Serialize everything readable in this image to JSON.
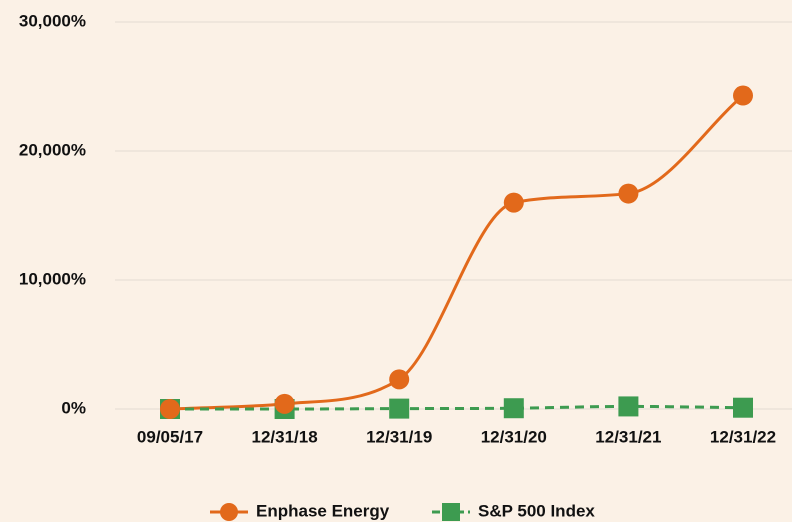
{
  "chart_data": {
    "type": "line",
    "categories": [
      "09/05/17",
      "12/31/18",
      "12/31/19",
      "12/31/20",
      "12/31/21",
      "12/31/22"
    ],
    "series": [
      {
        "name": "Enphase Energy",
        "color": "#e2691b",
        "marker": "circle",
        "dashed": false,
        "values": [
          0,
          400,
          2300,
          16000,
          16700,
          24300
        ]
      },
      {
        "name": "S&P 500 Index",
        "color": "#3d9b50",
        "marker": "square",
        "dashed": true,
        "values": [
          0,
          0,
          30,
          60,
          200,
          100
        ]
      }
    ],
    "ylim": [
      0,
      30000
    ],
    "yticks": [
      {
        "value": 0,
        "label": "0%"
      },
      {
        "value": 10000,
        "label": "10,000%"
      },
      {
        "value": 20000,
        "label": "20,000%"
      },
      {
        "value": 30000,
        "label": "30,000%"
      }
    ],
    "grid": true,
    "smooth": true,
    "legend": "bottom"
  }
}
